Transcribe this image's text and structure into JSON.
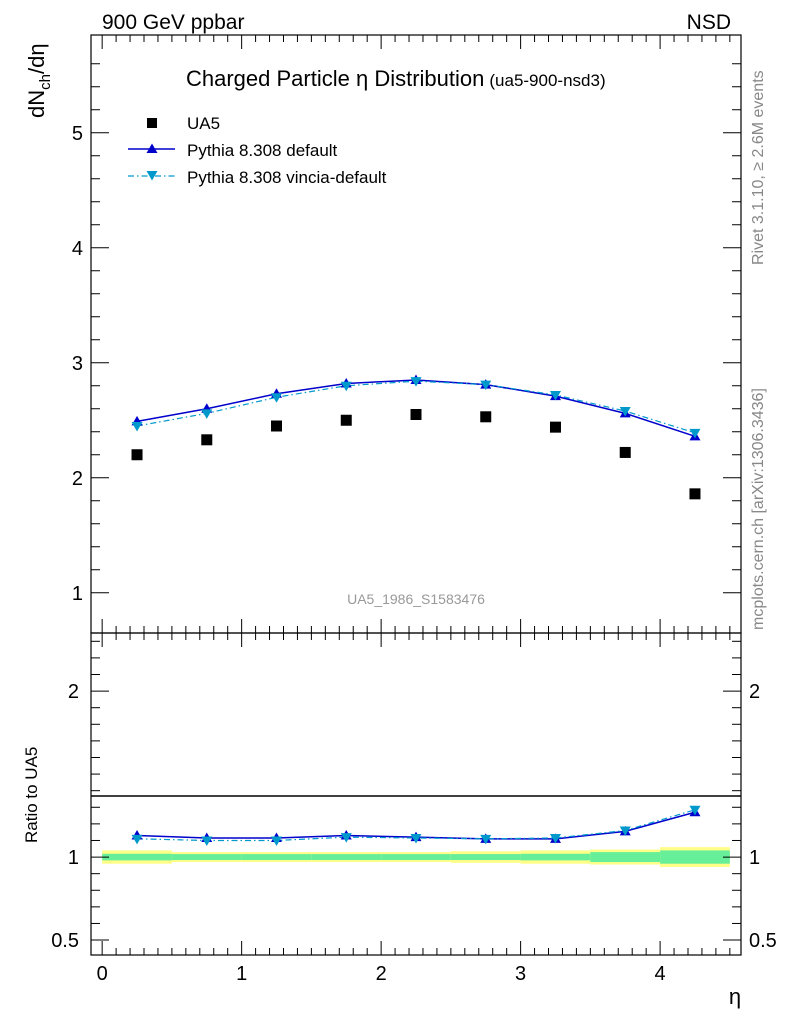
{
  "header": {
    "energy": "900 GeV ppbar",
    "process": "NSD"
  },
  "side_labels": {
    "rivet": "Rivet 3.1.10, ≥ 2.6M events",
    "mcplots": "mcplots.cern.ch [arXiv:1306.3436]"
  },
  "colors": {
    "data": "#000000",
    "pythia_default": "#0000cc",
    "vincia": "#0099cc",
    "band_inner": "#66ee99",
    "band_outer": "#ffff88"
  },
  "chart_data": [
    {
      "type": "scatter",
      "title": "Charged Particle η Distribution",
      "title_tag": "(ua5-900-nsd3)",
      "ylabel": "dN_ch/dη",
      "analysis_id": "UA5_1986_S1583476",
      "ylim": [
        0.65,
        5.85
      ],
      "xlim": [
        -0.08,
        4.58
      ],
      "yticks": [
        1,
        2,
        3,
        4,
        5
      ],
      "ytick_labels": [
        "1",
        "2",
        "3",
        "4",
        "5"
      ],
      "legend_placement": "top-left",
      "x": [
        0.25,
        0.75,
        1.25,
        1.75,
        2.25,
        2.75,
        3.25,
        3.75,
        4.25
      ],
      "series": [
        {
          "name": "UA5",
          "marker": "square",
          "values": [
            2.2,
            2.33,
            2.45,
            2.5,
            2.55,
            2.53,
            2.44,
            2.22,
            1.86
          ]
        },
        {
          "name": "Pythia 8.308 default",
          "marker": "triangle-up",
          "line": "solid",
          "values": [
            2.49,
            2.6,
            2.73,
            2.82,
            2.85,
            2.81,
            2.71,
            2.56,
            2.36
          ]
        },
        {
          "name": "Pythia 8.308 vincia-default",
          "marker": "triangle-down",
          "line": "dashdot",
          "values": [
            2.45,
            2.56,
            2.7,
            2.8,
            2.84,
            2.81,
            2.72,
            2.58,
            2.39
          ]
        }
      ]
    },
    {
      "type": "line",
      "xlabel": "η",
      "ylabel": "Ratio to UA5",
      "ylim": [
        0.41,
        2.35
      ],
      "xlim": [
        -0.08,
        4.58
      ],
      "yticks": [
        0.5,
        1,
        2
      ],
      "ytick_labels": [
        "0.5",
        "1",
        "2"
      ],
      "xticks": [
        0,
        1,
        2,
        3,
        4
      ],
      "xtick_labels": [
        "0",
        "1",
        "2",
        "3",
        "4"
      ],
      "x": [
        0.25,
        0.75,
        1.25,
        1.75,
        2.25,
        2.75,
        3.25,
        3.75,
        4.25
      ],
      "band_edges": [
        0,
        0.5,
        1.0,
        1.5,
        2.0,
        2.5,
        3.0,
        3.5,
        4.0,
        4.5
      ],
      "band_inner_halfwidth": [
        0.02,
        0.018,
        0.018,
        0.018,
        0.018,
        0.018,
        0.02,
        0.03,
        0.04
      ],
      "band_outer_halfwidth": [
        0.04,
        0.03,
        0.03,
        0.03,
        0.03,
        0.035,
        0.04,
        0.045,
        0.06
      ],
      "series": [
        {
          "name": "Pythia 8.308 default",
          "marker": "triangle-up",
          "line": "solid",
          "values": [
            1.13,
            1.115,
            1.115,
            1.13,
            1.12,
            1.11,
            1.11,
            1.155,
            1.27
          ]
        },
        {
          "name": "Pythia 8.308 vincia-default",
          "marker": "triangle-down",
          "line": "dashdot",
          "values": [
            1.11,
            1.1,
            1.1,
            1.12,
            1.115,
            1.11,
            1.115,
            1.16,
            1.285
          ]
        }
      ]
    }
  ]
}
